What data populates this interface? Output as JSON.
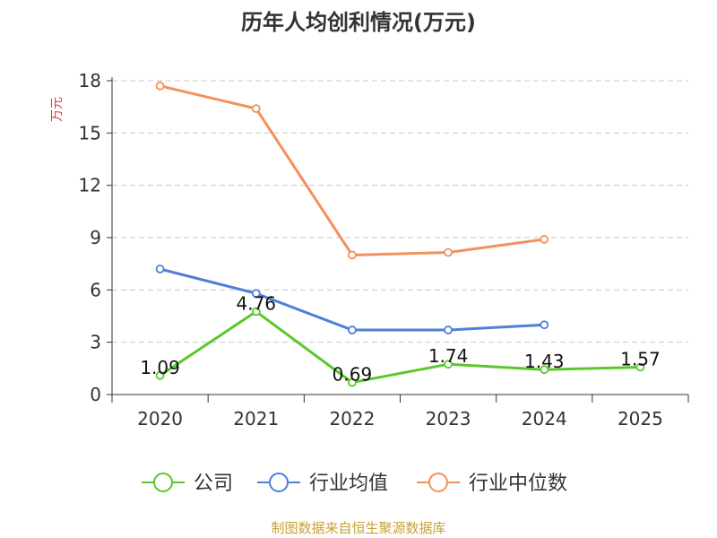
{
  "chart_data": {
    "type": "line",
    "title": "历年人均创利情况(万元)",
    "ylabel": "万元",
    "ylim": [
      0,
      18
    ],
    "yticks": [
      0,
      3,
      6,
      9,
      12,
      15,
      18
    ],
    "grid": true,
    "legend_position": "bottom",
    "categories": [
      "2020",
      "2021",
      "2022",
      "2023",
      "2024",
      "2025"
    ],
    "series": [
      {
        "name": "公司",
        "color": "#5ac82a",
        "values": [
          1.09,
          4.76,
          0.69,
          1.74,
          1.43,
          1.57
        ],
        "labels": [
          "1.09",
          "4.76",
          "0.69",
          "1.74",
          "1.43",
          "1.57"
        ]
      },
      {
        "name": "行业均值",
        "color": "#4f7fd9",
        "values": [
          7.2,
          5.8,
          3.7,
          3.7,
          4.0,
          null
        ]
      },
      {
        "name": "行业中位数",
        "color": "#f4905a",
        "values": [
          17.7,
          16.4,
          8.0,
          8.15,
          8.9,
          null
        ]
      }
    ]
  },
  "footer": "制图数据来自恒生聚源数据库"
}
